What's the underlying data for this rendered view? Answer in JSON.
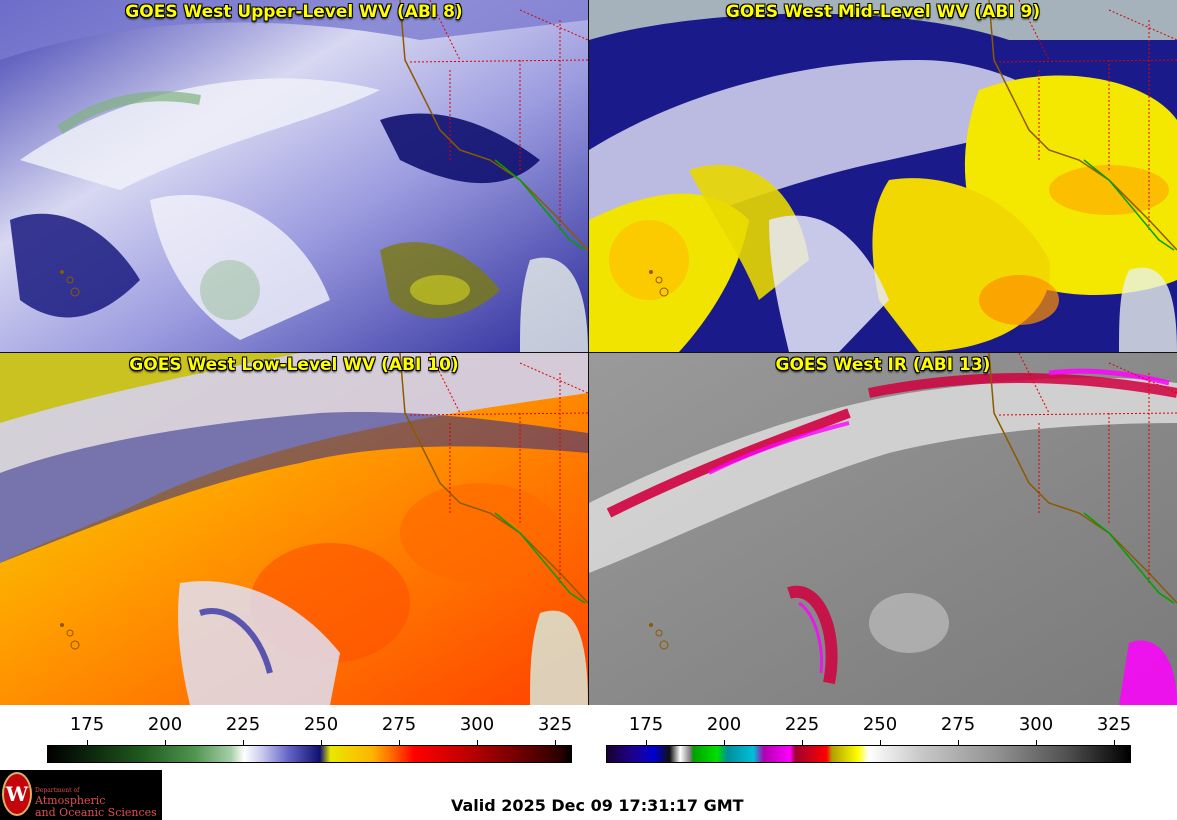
{
  "panels": [
    {
      "title": "GOES West Upper-Level WV (ABI 8)"
    },
    {
      "title": "GOES West Mid-Level WV (ABI 9)"
    },
    {
      "title": "GOES West Low-Level WV (ABI 10)"
    },
    {
      "title": "GOES West IR (ABI 13)"
    }
  ],
  "scales": {
    "wv": {
      "ticks": [
        "175",
        "200",
        "225",
        "250",
        "275",
        "300",
        "325"
      ]
    },
    "ir": {
      "ticks": [
        "175",
        "200",
        "225",
        "250",
        "275",
        "300",
        "325"
      ]
    }
  },
  "logo": {
    "dept_line": "Department of",
    "name_line1": "Atmospheric",
    "name_line2": "and Oceanic Sciences",
    "seal_letter": "W"
  },
  "valid_time": "Valid 2025 Dec 09 17:31:17 GMT",
  "colors": {
    "title_text": "#ffff00",
    "state_borders": "#e00000",
    "coastline": "#8b5a00",
    "mexico_coast": "#00a000"
  }
}
